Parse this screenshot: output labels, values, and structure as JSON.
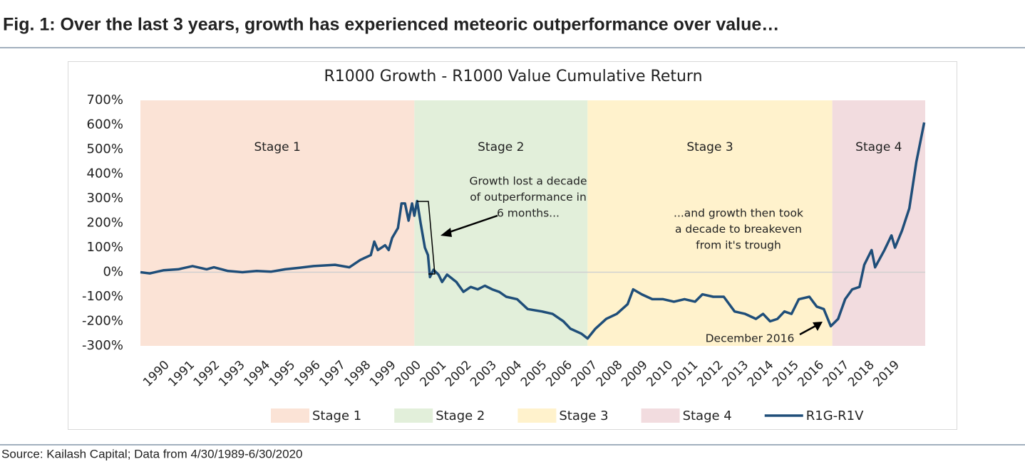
{
  "figure_title": "Fig. 1: Over the last 3 years, growth has experienced meteoric outperformance over value…",
  "source": "Source: Kailash Capital; Data from 4/30/1989-6/30/2020",
  "chart_data": {
    "type": "line",
    "title": "R1000 Growth - R1000 Value Cumulative Return",
    "xlim": [
      1989.33,
      2020.5
    ],
    "xticks": [
      1990,
      1991,
      1992,
      1993,
      1994,
      1995,
      1996,
      1997,
      1998,
      1999,
      2000,
      2001,
      2002,
      2003,
      2004,
      2005,
      2006,
      2007,
      2008,
      2009,
      2010,
      2011,
      2012,
      2013,
      2014,
      2015,
      2016,
      2017,
      2018,
      2019
    ],
    "ylim": [
      -300,
      700
    ],
    "yticks": [
      {
        "value": -300,
        "label": "-300%"
      },
      {
        "value": -200,
        "label": "-200%"
      },
      {
        "value": -100,
        "label": "-100%"
      },
      {
        "value": 0,
        "label": "0%"
      },
      {
        "value": 100,
        "label": "100%"
      },
      {
        "value": 200,
        "label": "200%"
      },
      {
        "value": 300,
        "label": "300%"
      },
      {
        "value": 400,
        "label": "400%"
      },
      {
        "value": 500,
        "label": "500%"
      },
      {
        "value": 600,
        "label": "600%"
      },
      {
        "value": 700,
        "label": "700%"
      }
    ],
    "stages": [
      {
        "name": "Stage 1",
        "start": 1989.33,
        "end": 2000.21,
        "color": "#fbe3d6"
      },
      {
        "name": "Stage 2",
        "start": 2000.21,
        "end": 2007.09,
        "color": "#e2efda"
      },
      {
        "name": "Stage 3",
        "start": 2007.09,
        "end": 2016.81,
        "color": "#fff2cc"
      },
      {
        "name": "Stage 4",
        "start": 2016.81,
        "end": 2020.5,
        "color": "#f2dcdf"
      }
    ],
    "x": [
      1989.33,
      1989.7,
      1990.26,
      1990.83,
      1991.4,
      1991.96,
      1992.25,
      1992.81,
      1993.38,
      1993.95,
      1994.51,
      1995.08,
      1995.65,
      1996.21,
      1997.06,
      1997.63,
      1998.06,
      1998.48,
      1998.62,
      1998.76,
      1999.05,
      1999.19,
      1999.33,
      1999.56,
      1999.7,
      1999.84,
      1999.98,
      2000.12,
      2000.21,
      2000.32,
      2000.46,
      2000.63,
      2000.75,
      2000.83,
      2000.97,
      2001.17,
      2001.31,
      2001.51,
      2001.88,
      2002.16,
      2002.45,
      2002.73,
      2003.01,
      2003.3,
      2003.58,
      2003.86,
      2004.29,
      2004.71,
      2005.28,
      2005.7,
      2006.13,
      2006.41,
      2006.84,
      2007.09,
      2007.4,
      2007.83,
      2008.25,
      2008.68,
      2008.9,
      2009.24,
      2009.66,
      2010.09,
      2010.52,
      2010.94,
      2011.36,
      2011.65,
      2012.08,
      2012.5,
      2012.93,
      2013.35,
      2013.78,
      2014.06,
      2014.34,
      2014.63,
      2014.91,
      2015.19,
      2015.48,
      2015.9,
      2016.19,
      2016.47,
      2016.75,
      2017.04,
      2017.32,
      2017.6,
      2017.89,
      2018.08,
      2018.37,
      2018.51,
      2018.88,
      2019.16,
      2019.3,
      2019.58,
      2019.87,
      2020.15,
      2020.46
    ],
    "series": [
      {
        "name": "R1G-R1V",
        "color": "#1f4e79",
        "values": [
          0,
          -5,
          8,
          12,
          25,
          12,
          20,
          5,
          0,
          5,
          2,
          12,
          18,
          25,
          30,
          20,
          50,
          70,
          125,
          90,
          110,
          90,
          140,
          180,
          280,
          280,
          210,
          280,
          230,
          290,
          200,
          100,
          70,
          -20,
          10,
          -10,
          -40,
          -10,
          -40,
          -80,
          -60,
          -70,
          -55,
          -70,
          -80,
          -100,
          -110,
          -150,
          -160,
          -170,
          -200,
          -230,
          -250,
          -270,
          -230,
          -190,
          -170,
          -130,
          -70,
          -90,
          -110,
          -110,
          -120,
          -110,
          -120,
          -90,
          -100,
          -100,
          -160,
          -170,
          -190,
          -170,
          -200,
          -190,
          -160,
          -170,
          -110,
          -100,
          -140,
          -150,
          -220,
          -190,
          -110,
          -70,
          -60,
          30,
          90,
          20,
          90,
          150,
          100,
          170,
          260,
          450,
          610
        ]
      }
    ],
    "annotations": [
      {
        "lines": [
          "Growth lost a decade",
          "of outperformance in",
          "6 months..."
        ]
      },
      {
        "lines": [
          "...and growth then took",
          "a decade to breakeven",
          "from it's trough"
        ]
      },
      {
        "lines": [
          "December 2016"
        ]
      }
    ]
  }
}
